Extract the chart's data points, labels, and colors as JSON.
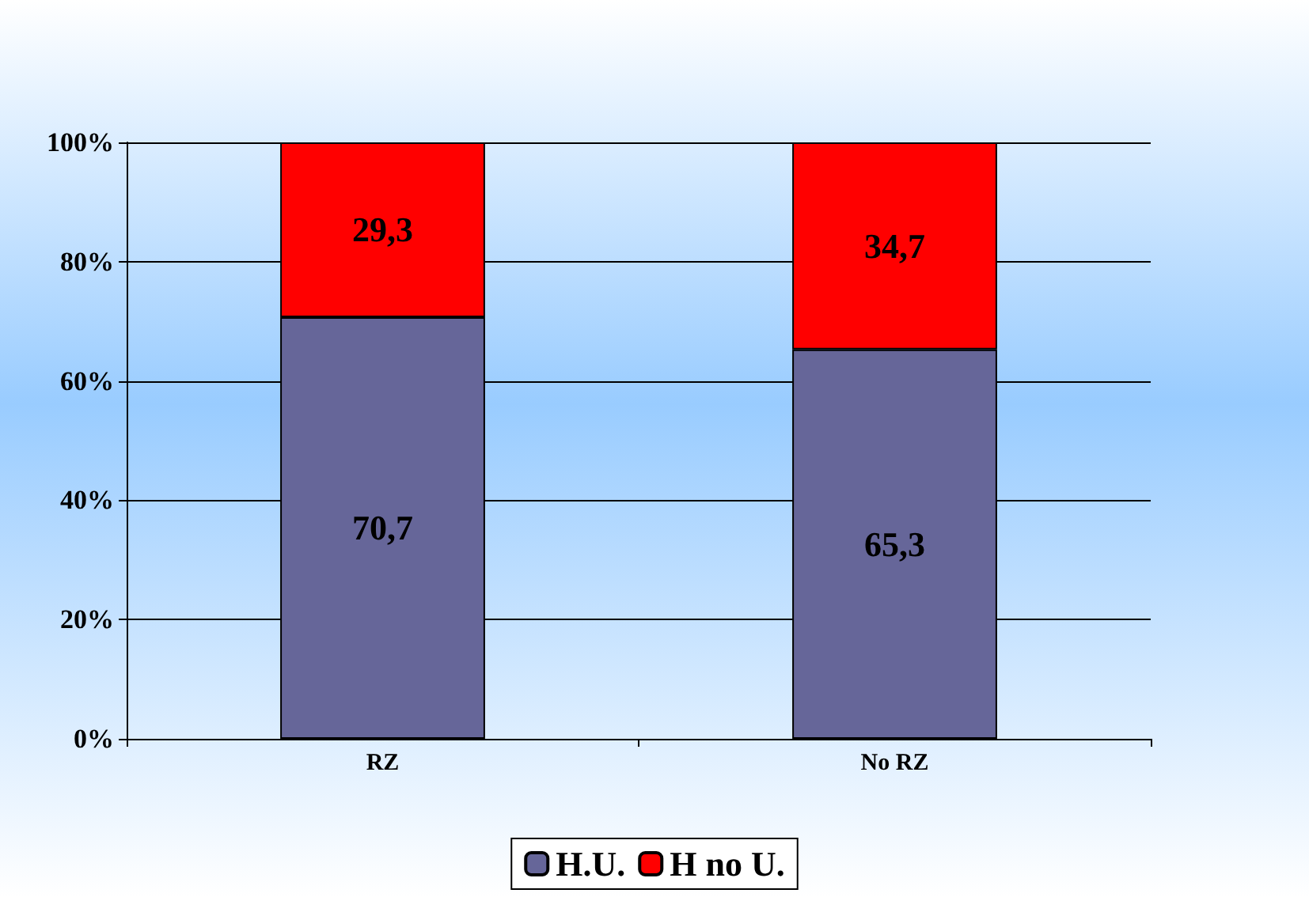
{
  "chart_data": {
    "type": "bar",
    "stacked": true,
    "categories": [
      "RZ",
      "No RZ"
    ],
    "series": [
      {
        "name": "H.U.",
        "color": "#666699",
        "values": [
          70.7,
          65.3
        ],
        "value_labels": [
          "70,7",
          "65,3"
        ]
      },
      {
        "name": "H no U.",
        "color": "#ff0000",
        "values": [
          29.3,
          34.7
        ],
        "value_labels": [
          "29,3",
          "34,7"
        ]
      }
    ],
    "ylim": [
      0,
      100
    ],
    "yticks": [
      {
        "value": 0,
        "label": "0%"
      },
      {
        "value": 20,
        "label": "20%"
      },
      {
        "value": 40,
        "label": "40%"
      },
      {
        "value": 60,
        "label": "60%"
      },
      {
        "value": 80,
        "label": "80%"
      },
      {
        "value": 100,
        "label": "100%"
      }
    ],
    "grid": "y",
    "legend": "bottom"
  }
}
